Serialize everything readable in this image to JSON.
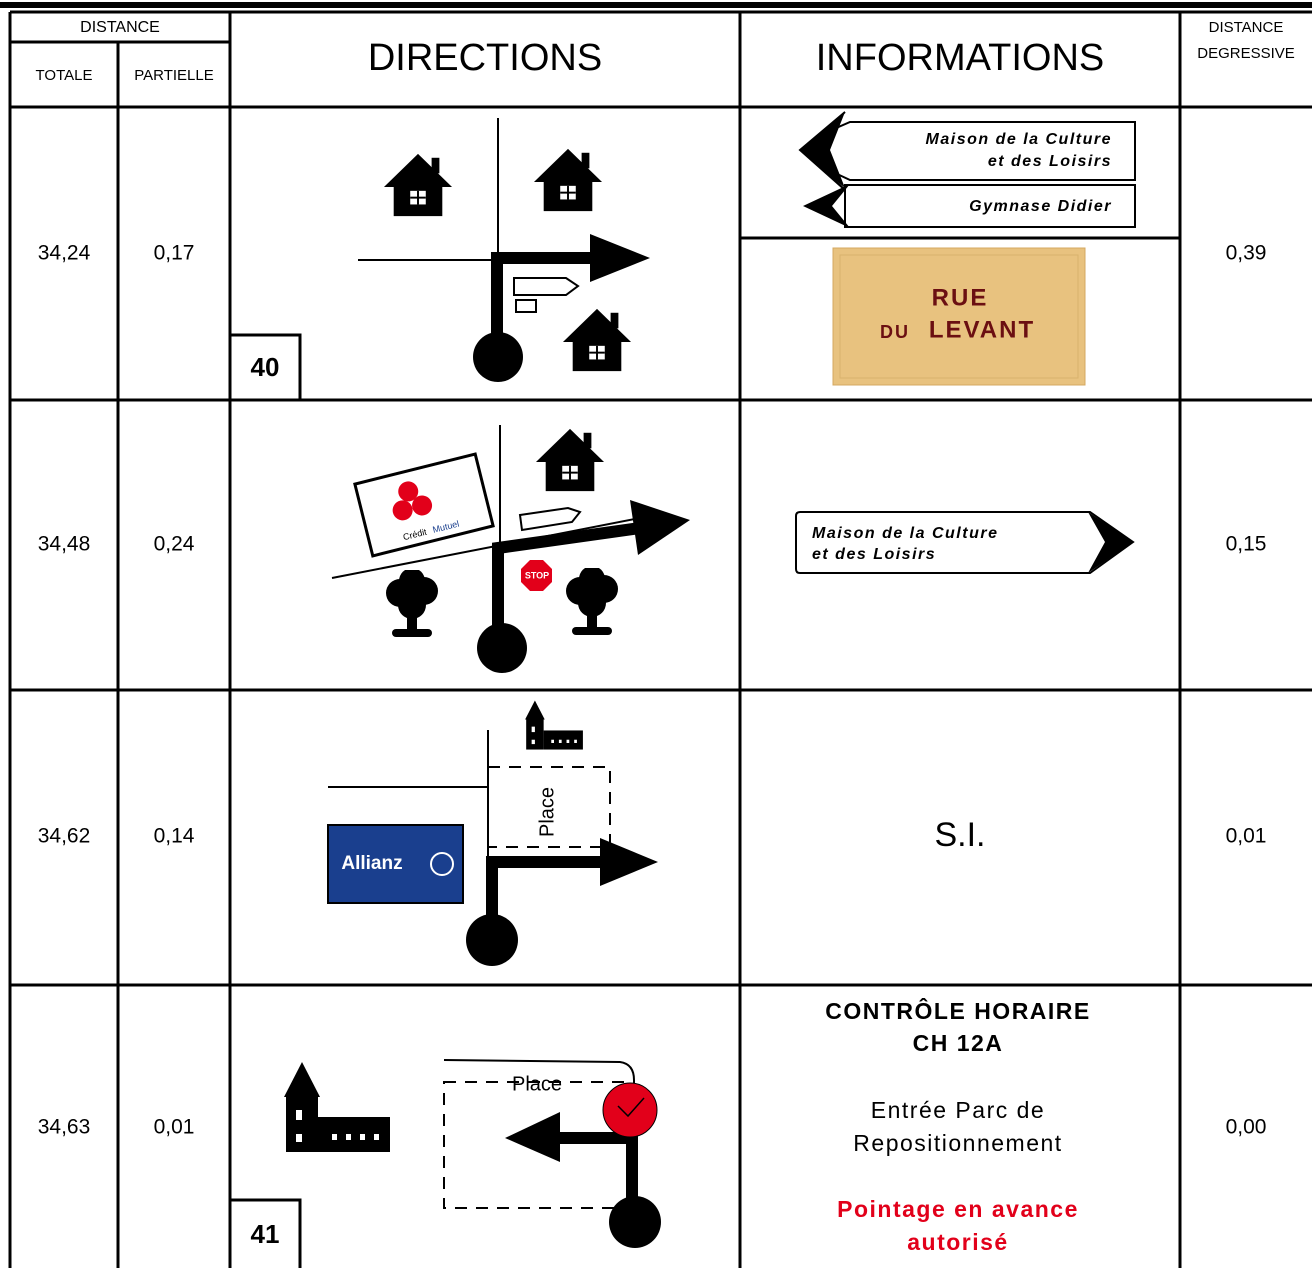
{
  "header": {
    "distance": "DISTANCE",
    "totale": "TOTALE",
    "partielle": "PARTIELLE",
    "directions": "DIRECTIONS",
    "informations": "INFORMATIONS",
    "degressive": [
      "DISTANCE",
      "DEGRESSIVE"
    ]
  },
  "rows": [
    {
      "totale": "34,24",
      "partielle": "0,17",
      "degressive": "0,39",
      "case": "40",
      "signs": [
        [
          "Maison de la Culture",
          "et des Loisirs"
        ],
        [
          "Gymnase Didier"
        ]
      ],
      "plaque": [
        "RUE",
        "DU",
        "LEVANT"
      ]
    },
    {
      "totale": "34,48",
      "partielle": "0,24",
      "degressive": "0,15",
      "signs": [
        [
          "Maison de la Culture",
          "et des Loisirs"
        ]
      ],
      "logo": [
        "Crédit",
        "Mutuel"
      ],
      "stop": "STOP"
    },
    {
      "totale": "34,62",
      "partielle": "0,14",
      "degressive": "0,01",
      "info": "S.I.",
      "place": "Place",
      "logo": "Allianz"
    },
    {
      "totale": "34,63",
      "partielle": "0,01",
      "degressive": "0,00",
      "case": "41",
      "place": "Place",
      "info": [
        "CONTRÔLE HORAIRE",
        "CH 12A",
        "Entrée Parc de",
        "Repositionnement",
        "Pointage en avance",
        "autorisé"
      ]
    }
  ]
}
